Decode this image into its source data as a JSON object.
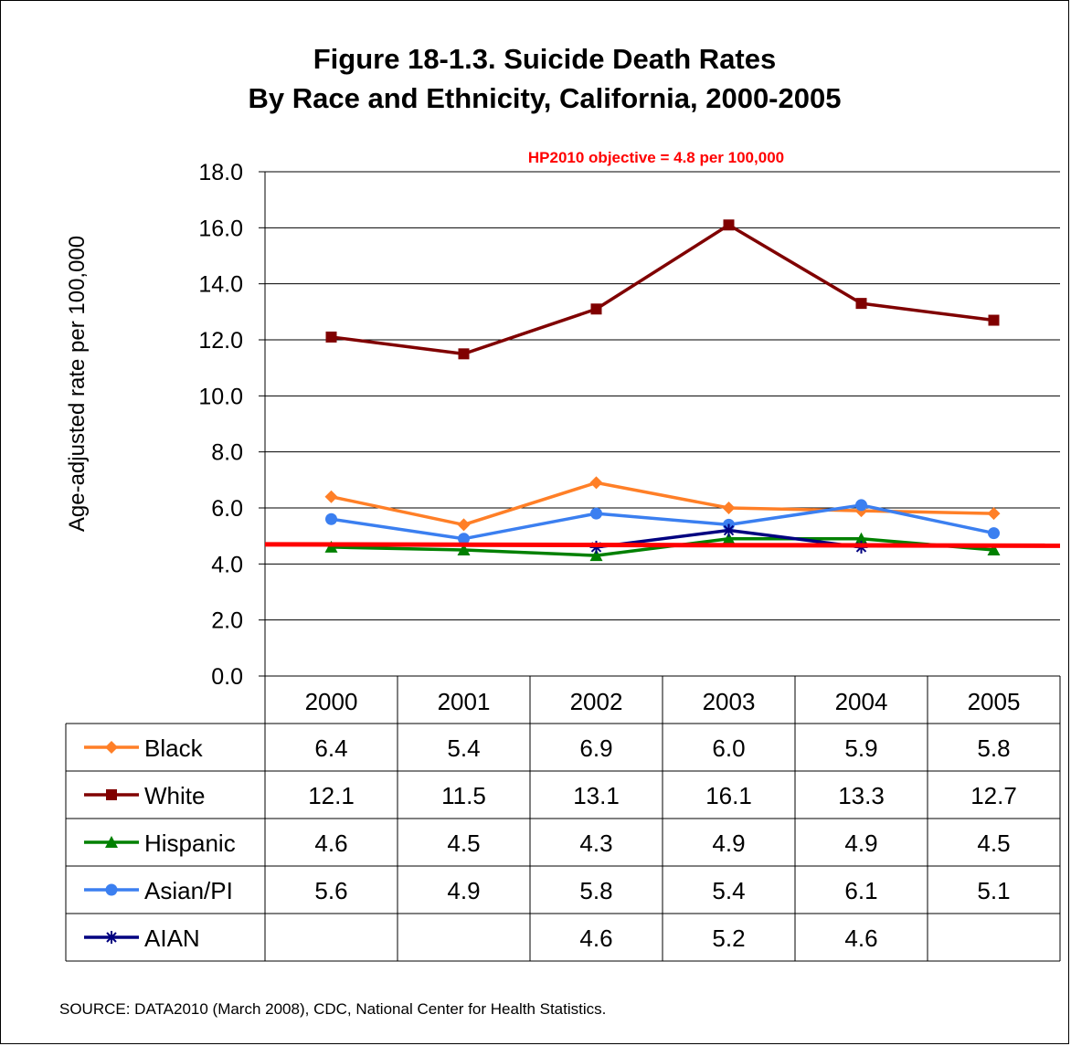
{
  "chart_data": {
    "type": "line",
    "title_line1": "Figure 18-1.3. Suicide Death Rates",
    "title_line2": "By Race and Ethnicity, California, 2000-2005",
    "ylabel": "Age-adjusted rate per 100,000",
    "ylim": [
      0,
      18
    ],
    "yticks": [
      "0.0",
      "2.0",
      "4.0",
      "6.0",
      "8.0",
      "10.0",
      "12.0",
      "14.0",
      "16.0",
      "18.0"
    ],
    "categories": [
      "2000",
      "2001",
      "2002",
      "2003",
      "2004",
      "2005"
    ],
    "series": [
      {
        "name": "Black",
        "color": "#ff7f27",
        "marker": "diamond",
        "values": [
          6.4,
          5.4,
          6.9,
          6.0,
          5.9,
          5.8
        ],
        "labels": [
          "6.4",
          "5.4",
          "6.9",
          "6.0",
          "5.9",
          "5.8"
        ]
      },
      {
        "name": "White",
        "color": "#800000",
        "marker": "square",
        "values": [
          12.1,
          11.5,
          13.1,
          16.1,
          13.3,
          12.7
        ],
        "labels": [
          "12.1",
          "11.5",
          "13.1",
          "16.1",
          "13.3",
          "12.7"
        ]
      },
      {
        "name": "Hispanic",
        "color": "#008000",
        "marker": "triangle",
        "values": [
          4.6,
          4.5,
          4.3,
          4.9,
          4.9,
          4.5
        ],
        "labels": [
          "4.6",
          "4.5",
          "4.3",
          "4.9",
          "4.9",
          "4.5"
        ]
      },
      {
        "name": "Asian/PI",
        "color": "#3b7ff0",
        "marker": "circle",
        "values": [
          5.6,
          4.9,
          5.8,
          5.4,
          6.1,
          5.1
        ],
        "labels": [
          "5.6",
          "4.9",
          "5.8",
          "5.4",
          "6.1",
          "5.1"
        ]
      },
      {
        "name": "AIAN",
        "color": "#000080",
        "marker": "star",
        "values": [
          null,
          null,
          4.6,
          5.2,
          4.6,
          null
        ],
        "labels": [
          "",
          "",
          "4.6",
          "5.2",
          "4.6",
          ""
        ]
      }
    ],
    "objective": {
      "label": "HP2010 objective = 4.8 per 100,000",
      "start_value": 4.7,
      "end_value": 4.65,
      "color": "#ff0000"
    },
    "grid": true,
    "legend": "data-table"
  },
  "source": "SOURCE: DATA2010 (March 2008), CDC, National Center for Health Statistics."
}
